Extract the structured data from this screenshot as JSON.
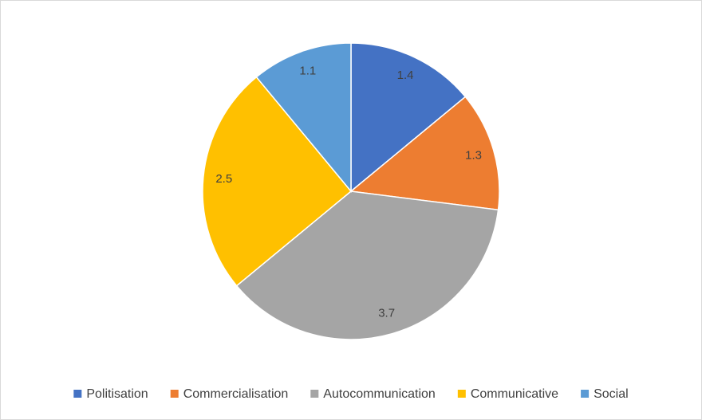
{
  "chart_data": {
    "type": "pie",
    "categories": [
      "Politisation",
      "Commercialisation",
      "Autocommunication",
      "Communicative",
      "Social"
    ],
    "values": [
      1.4,
      1.3,
      3.7,
      2.5,
      1.1
    ],
    "colors": [
      "#4472c4",
      "#ed7d31",
      "#a5a5a5",
      "#ffc000",
      "#5b9bd5"
    ],
    "legend": "bottom"
  }
}
